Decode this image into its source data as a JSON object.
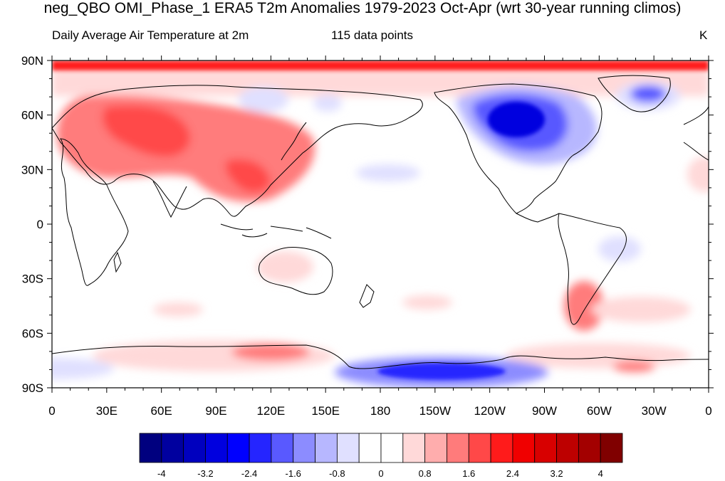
{
  "title": "neg_QBO OMI_Phase_1 ERA5 T2m Anomalies 1979-2023 Oct-Apr (wrt 30-year running climos)",
  "subtitle_left": "Daily Average Air Temperature at 2m",
  "subtitle_center": "115 data points",
  "subtitle_right": "K",
  "lat_ticks": [
    "90N",
    "60N",
    "30N",
    "0",
    "30S",
    "60S",
    "90S"
  ],
  "lon_ticks": [
    "0",
    "30E",
    "60E",
    "90E",
    "120E",
    "150E",
    "180",
    "150W",
    "120W",
    "90W",
    "60W",
    "30W",
    "0"
  ],
  "colorbar": {
    "labels": [
      "-4",
      "-3.2",
      "-2.4",
      "-1.6",
      "-0.8",
      "0",
      "0.8",
      "1.6",
      "2.4",
      "3.2",
      "4"
    ],
    "colors": [
      "#00007f",
      "#00009f",
      "#0000bf",
      "#0000df",
      "#0000ff",
      "#2525ff",
      "#5959ff",
      "#8c8cff",
      "#b7b7ff",
      "#e0e0ff",
      "#ffffff",
      "#ffffff",
      "#ffd9d9",
      "#ffadad",
      "#ff7b7b",
      "#ff4848",
      "#ff1b1b",
      "#f00000",
      "#d80000",
      "#bd0000",
      "#a30000",
      "#800000"
    ]
  },
  "anomaly_fields": {
    "arctic_band": "#ff1b1b",
    "eurasia_warm": "#ff7b7b",
    "eurasia_core": "#ff4848",
    "north_america_cold": "#0000df",
    "north_america_mid": "#5959ff",
    "north_america_outer": "#b7b7ff",
    "antarctic_cold": "#2525ff",
    "antarctic_outer": "#8c8cff",
    "light_warm": "#ffd9d9",
    "light_cold": "#e0e0ff"
  }
}
